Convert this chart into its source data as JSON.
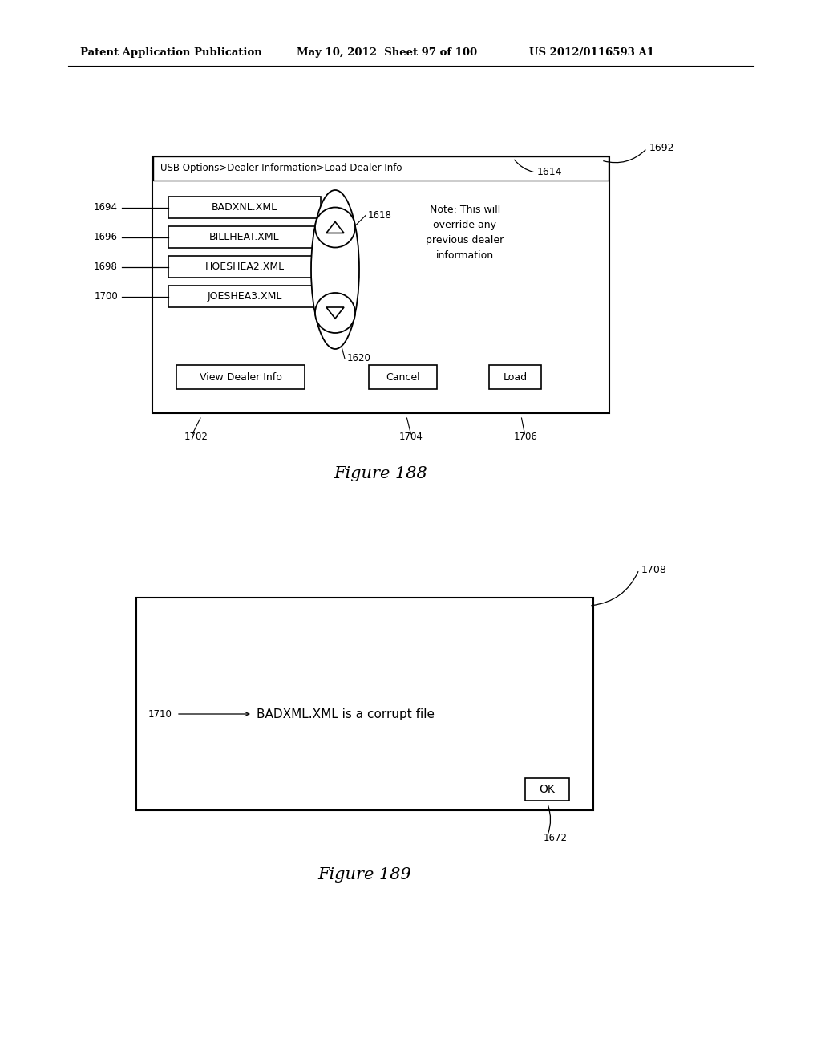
{
  "bg_color": "#ffffff",
  "header_left": "Patent Application Publication",
  "header_mid": "May 10, 2012  Sheet 97 of 100",
  "header_right": "US 2012/0116593 A1",
  "fig188_title": "Figure 188",
  "fig189_title": "Figure 189",
  "fig188": {
    "label": "1692",
    "screen_label": "1614",
    "title_bar": "USB Options>Dealer Information>Load Dealer Info",
    "files": [
      "BADXNL.XML",
      "BILLHEAT.XML",
      "HOESHEA2.XML",
      "JOESHEA3.XML"
    ],
    "file_labels": [
      "1694",
      "1696",
      "1698",
      "1700"
    ],
    "up_btn_label": "1618",
    "down_btn_label": "1620",
    "note_text": "Note: This will\noverride any\nprevious dealer\ninformation",
    "btn1": "View Dealer Info",
    "btn2": "Cancel",
    "btn3": "Load",
    "btn1_label": "1702",
    "btn2_label": "1704",
    "btn3_label": "1706"
  },
  "fig189": {
    "label": "1708",
    "message": "BADXML.XML is a corrupt file",
    "msg_label": "1710",
    "ok_btn": "OK",
    "ok_label": "1672"
  }
}
